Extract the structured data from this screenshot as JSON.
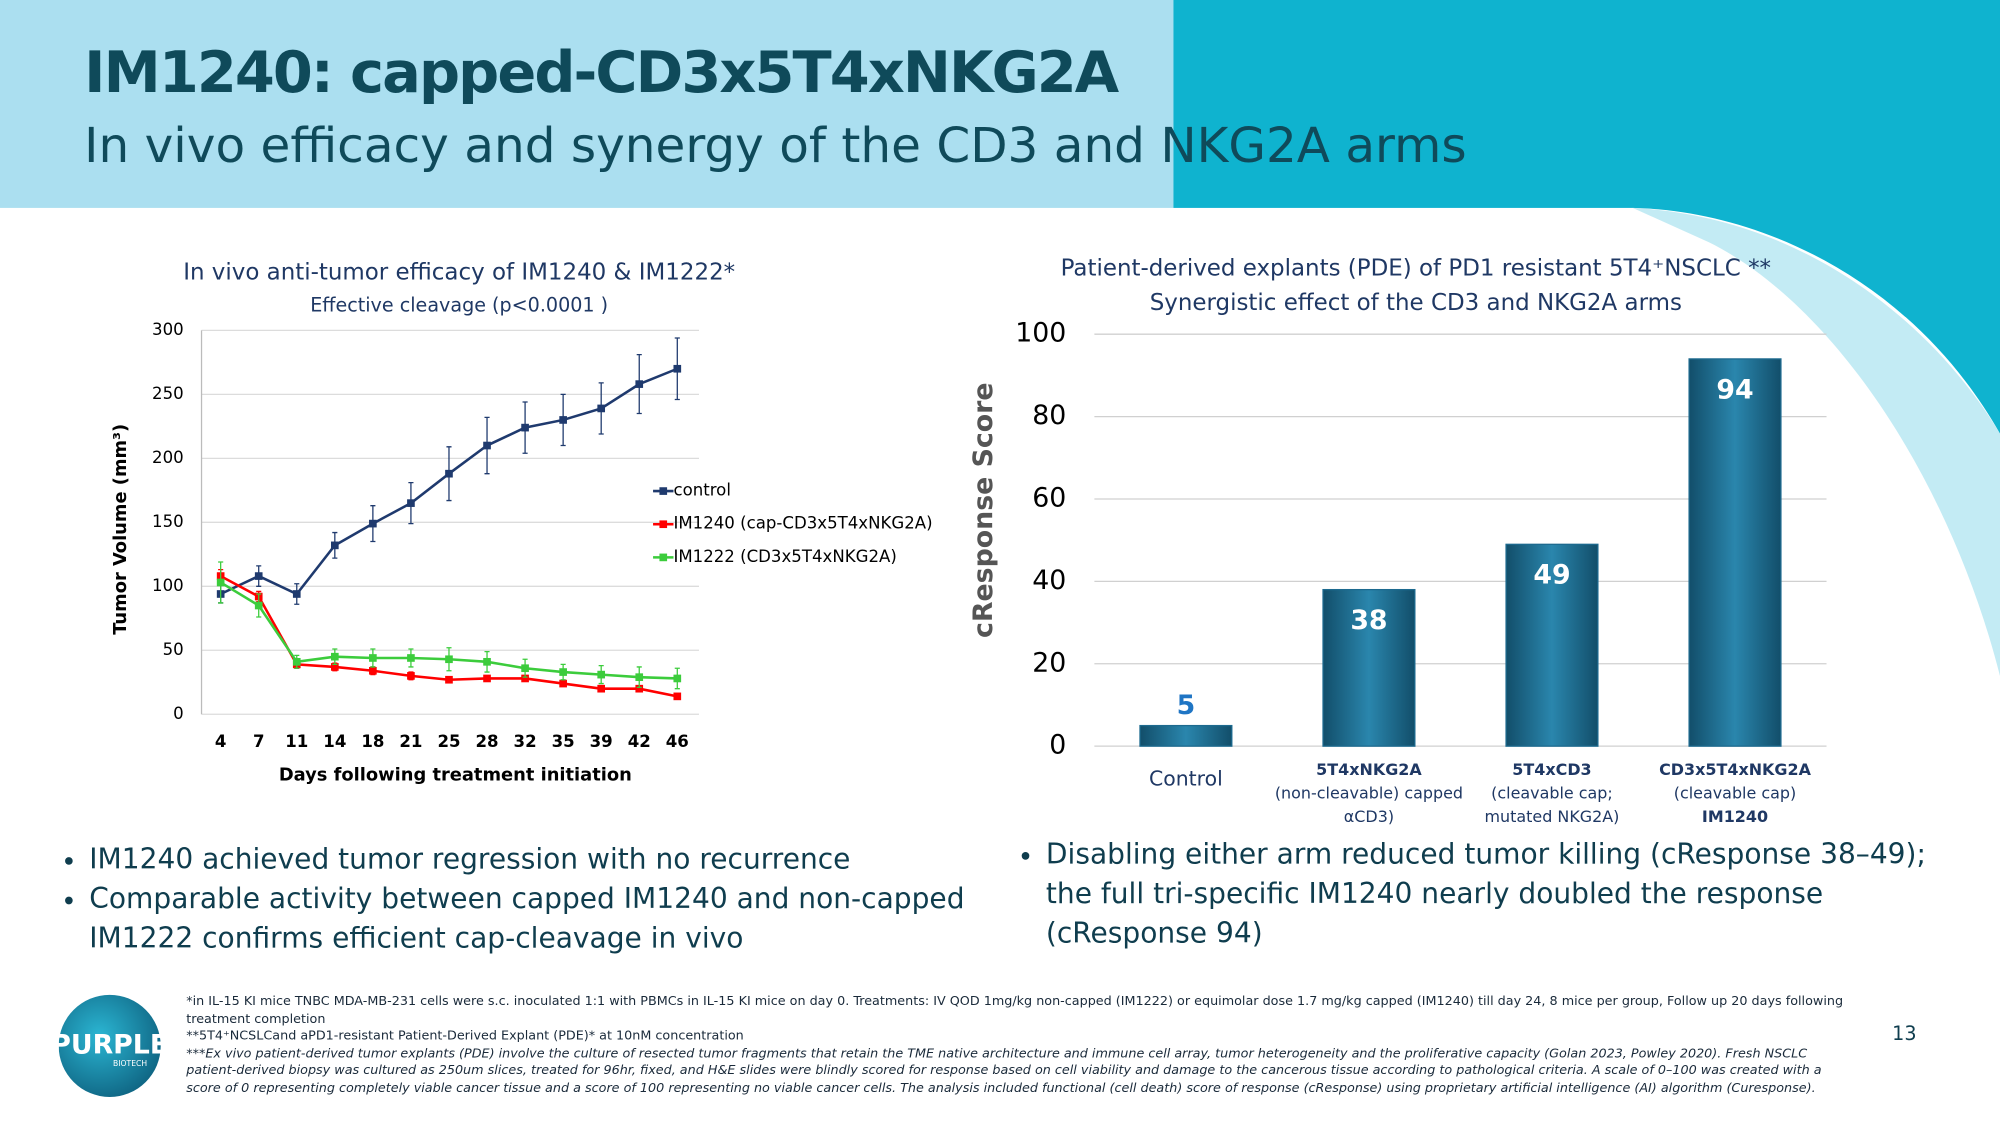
{
  "header": {
    "title": "IM1240: capped-CD3x5T4xNKG2A",
    "subtitle": "In vivo efficacy and synergy of the CD3 and NKG2A arms"
  },
  "chart_data": [
    {
      "type": "line",
      "title": "In vivo anti-tumor efficacy of IM1240 & IM1222*",
      "subtitle": "Effective cleavage (p<0.0001 )",
      "x_label": "Days following treatment initiation",
      "y_label": "Tumor Volume (mm³)",
      "categories": [
        "4",
        "7",
        "11",
        "14",
        "18",
        "21",
        "25",
        "28",
        "32",
        "35",
        "39",
        "42",
        "46"
      ],
      "series": [
        {
          "name": "control",
          "color": "#1f3a6e",
          "values": [
            94,
            108,
            94,
            132,
            149,
            165,
            188,
            210,
            224,
            230,
            239,
            258,
            270
          ],
          "errors": [
            7,
            8,
            8,
            10,
            14,
            16,
            21,
            22,
            20,
            20,
            20,
            23,
            24
          ]
        },
        {
          "name": "IM1240 (cap-CD3x5T4xNKG2A)",
          "color": "#ff0000",
          "values": [
            108,
            92,
            39,
            37,
            34,
            30,
            27,
            28,
            28,
            24,
            20,
            20,
            14
          ],
          "errors": [
            5,
            4,
            3,
            3,
            3,
            3,
            2,
            2,
            2,
            2,
            2,
            2,
            2
          ]
        },
        {
          "name": "IM1222 (CD3x5T4xNKG2A)",
          "color": "#3ccc3c",
          "values": [
            103,
            85,
            41,
            45,
            44,
            44,
            43,
            41,
            36,
            33,
            31,
            29,
            28
          ],
          "errors": [
            16,
            9,
            5,
            6,
            7,
            7,
            9,
            8,
            7,
            6,
            7,
            8,
            8
          ]
        }
      ],
      "ylim": [
        0,
        300
      ],
      "yticks": [
        0,
        50,
        100,
        150,
        200,
        250,
        300
      ],
      "grid": true
    },
    {
      "type": "bar",
      "title": [
        "Patient-derived explants (PDE) of PD1 resistant 5T4⁺NSCLC **",
        "Synergistic effect of the CD3 and NKG2A arms"
      ],
      "y_label": "cResponse Score",
      "categories": [
        [
          "Control"
        ],
        [
          "5T4xNKG2A",
          "(non-cleavable) capped",
          "αCD3)"
        ],
        [
          "5T4xCD3",
          "(cleavable cap;",
          "mutated NKG2A)"
        ],
        [
          "CD3x5T4xNKG2A",
          "(cleavable cap)",
          "IM1240"
        ]
      ],
      "values": [
        5,
        38,
        49,
        94
      ],
      "color": "#1d6a8f",
      "ylim": [
        0,
        100
      ],
      "yticks": [
        0,
        20,
        40,
        60,
        80,
        100
      ],
      "grid": true
    }
  ],
  "bullets_left": [
    "IM1240 achieved tumor regression with no recurrence",
    "Comparable activity between capped  IM1240 and non-capped IM1222 confirms efficient cap-cleavage in vivo"
  ],
  "bullets_right": [
    "Disabling either arm reduced tumor killing (cResponse 38–49); the full tri-specific IM1240 nearly doubled the response (cResponse 94)"
  ],
  "footnotes": [
    "*in IL-15 KI mice TNBC MDA-MB-231 cells were s.c. inoculated 1:1 with PBMCs in IL-15 KI mice on day 0. Treatments: IV QOD 1mg/kg non-capped (IM1222) or equimolar dose 1.7 mg/kg capped (IM1240) till day 24, 8 mice per group, Follow up 20 days following treatment completion",
    "**5T4⁺NCSLCand aPD1-resistant Patient-Derived Explant (PDE)* at 10nM concentration",
    "***Ex vivo patient-derived tumor explants (PDE) involve the culture of resected tumor fragments that retain the TME native architecture and immune cell array, tumor heterogeneity and the proliferative capacity (Golan 2023, Powley 2020). Fresh NSCLC patient-derived biopsy was cultured as 250um slices, treated for 96hr, fixed, and H&E slides were blindly scored for response based on cell viability and damage to the cancerous tissue according to pathological criteria. A scale of 0–100 was created with a score of 0 representing completely viable cancer tissue and a score of 100 representing no viable cancer cells. The analysis included functional (cell death) score of response (cResponse) using proprietary artificial intelligence (AI) algorithm (Curesponse)."
  ],
  "logo": {
    "name": "PURPLE",
    "sub": "BIOTECH"
  },
  "page_number": "13"
}
